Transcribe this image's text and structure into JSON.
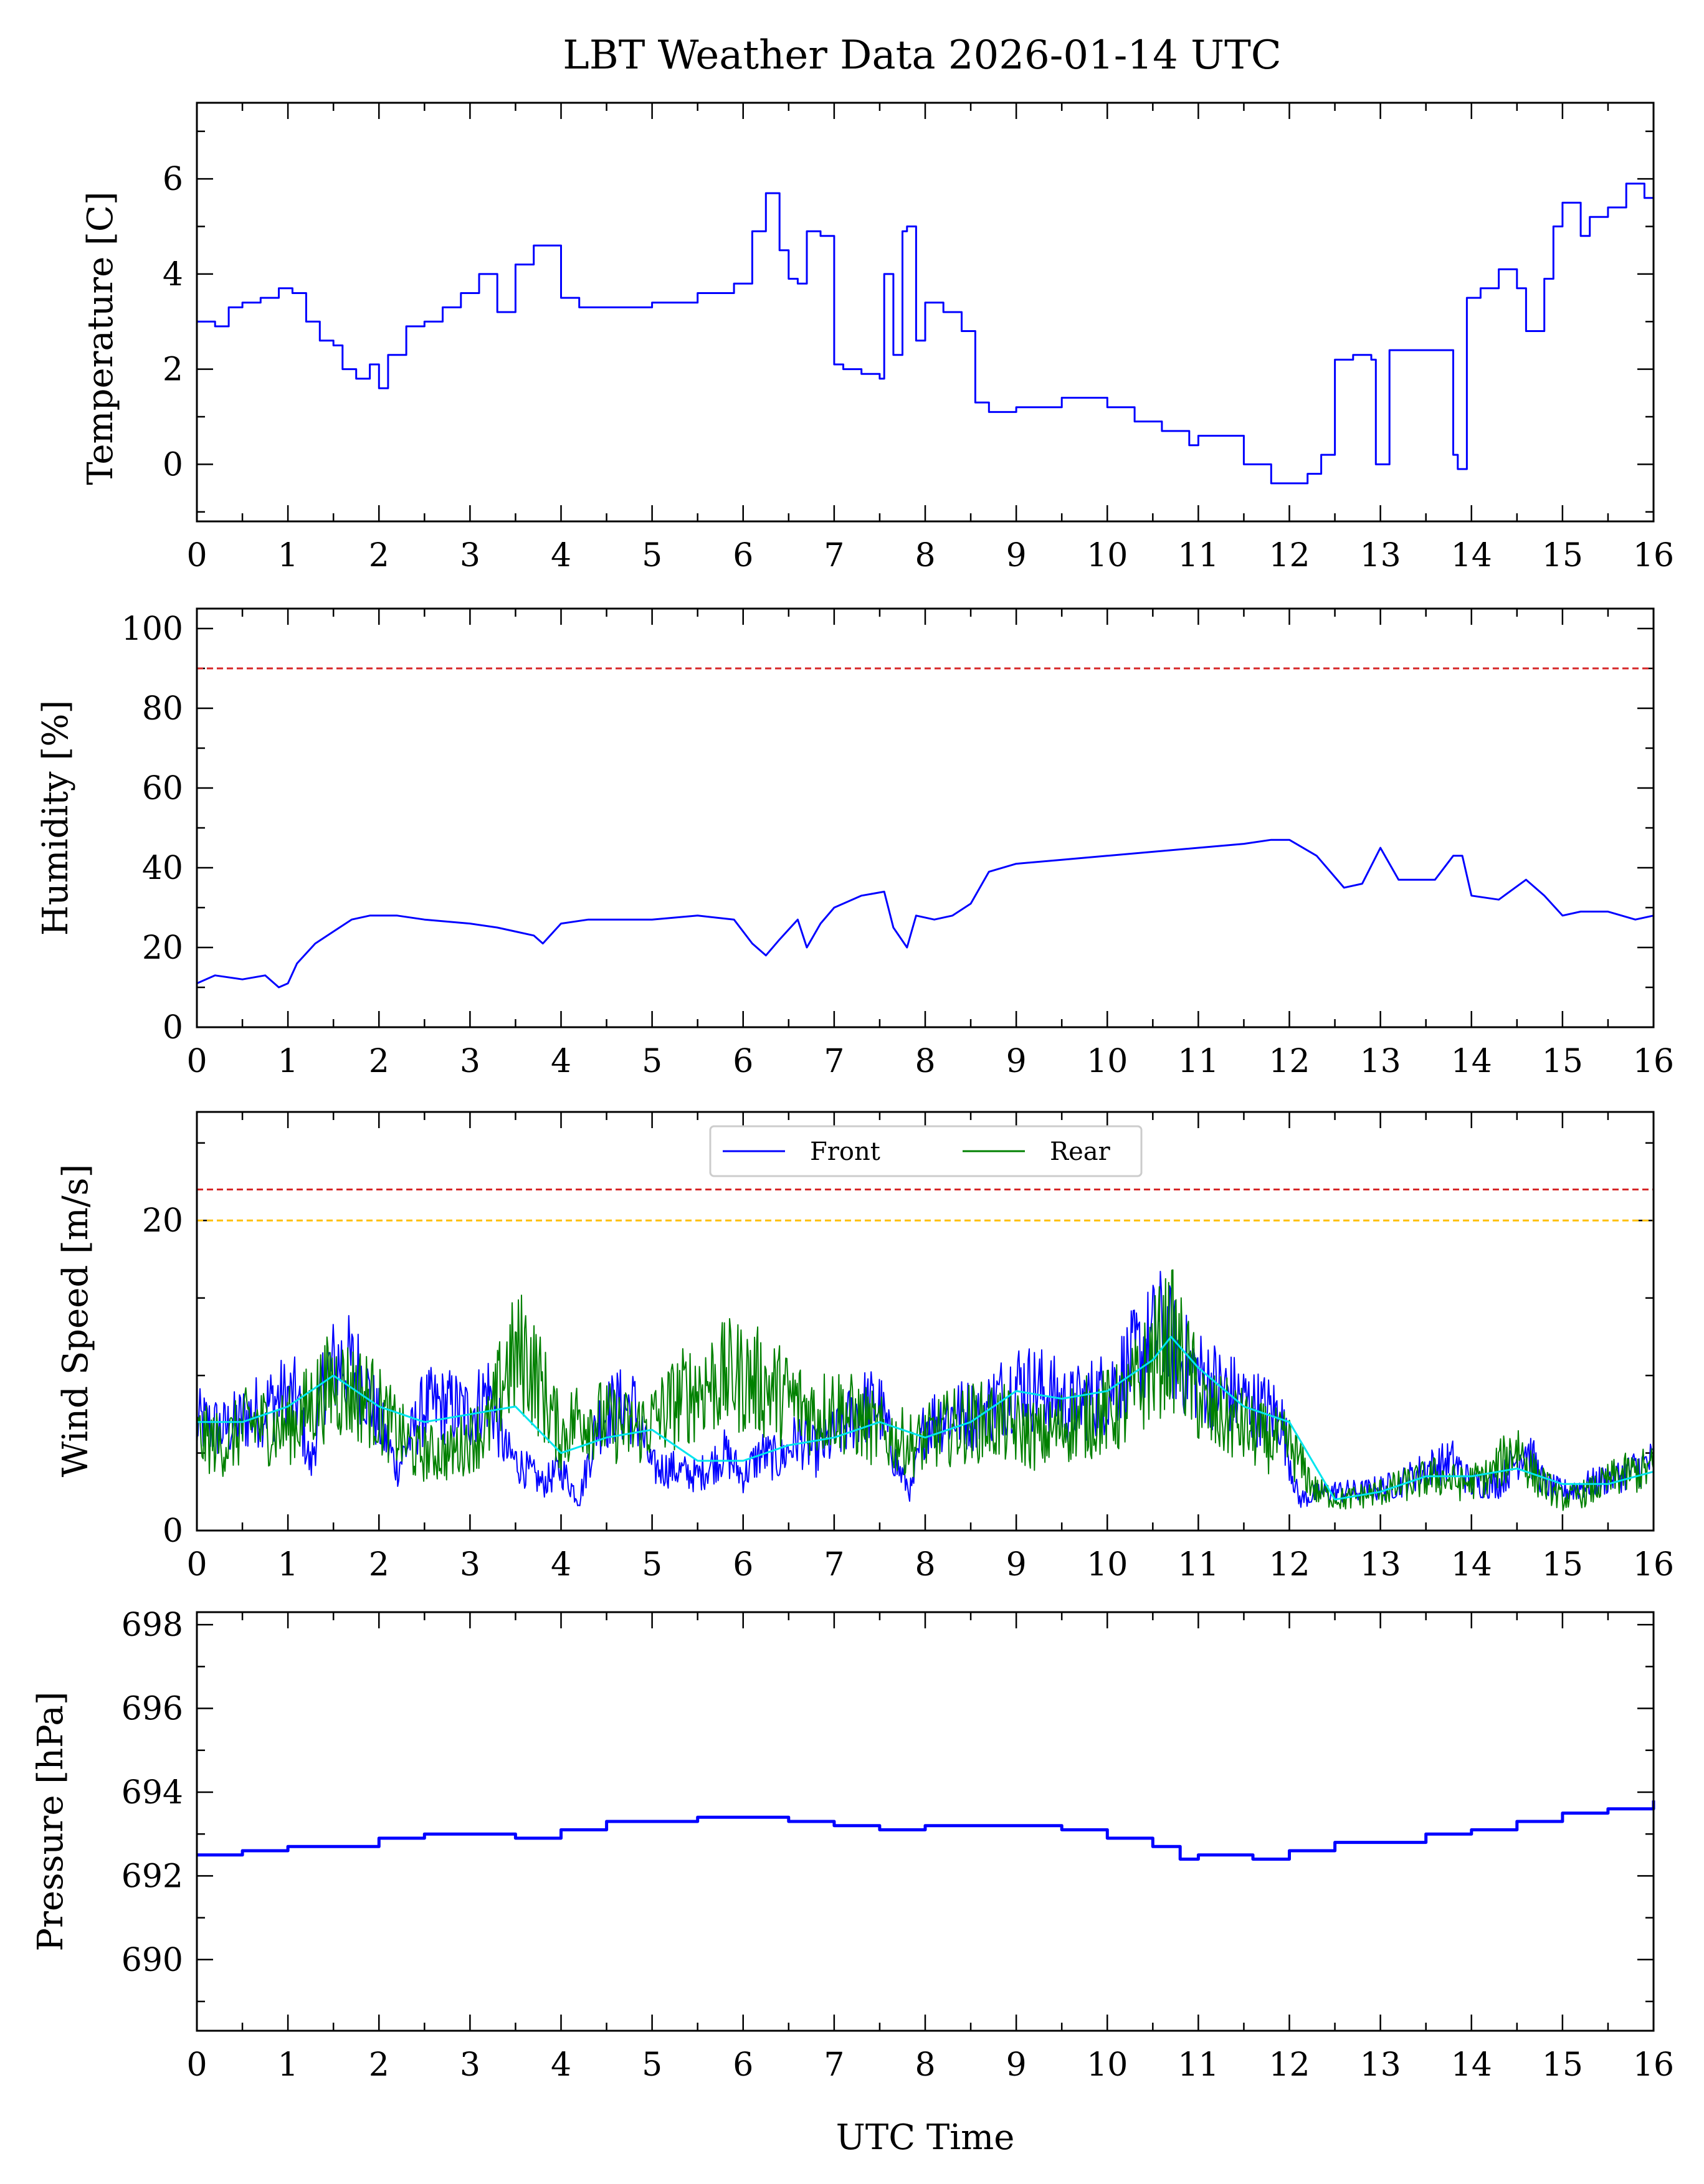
{
  "colors": {
    "front": "#0000ff",
    "rear": "#008000",
    "smooth": "#00e5ee",
    "limit_red": "#d62728",
    "limit_orange": "#ffbf00"
  },
  "chart_data": [
    {
      "type": "line",
      "title": "LBT Weather Data 2026-01-14 UTC",
      "ylabel": "Temperature [C]",
      "xlim": [
        0,
        16
      ],
      "ylim": [
        -1.2,
        7.6
      ],
      "xticks": [
        "0",
        "1",
        "2",
        "3",
        "4",
        "5",
        "6",
        "7",
        "8",
        "9",
        "10",
        "11",
        "12",
        "13",
        "14",
        "15",
        "16"
      ],
      "yticks": [
        0,
        2,
        4,
        6
      ],
      "series": [
        {
          "name": "Temperature",
          "color": "#0000ff",
          "x": [
            0,
            0.2,
            0.35,
            0.5,
            0.7,
            0.9,
            1.05,
            1.2,
            1.35,
            1.5,
            1.6,
            1.75,
            1.9,
            2.0,
            2.1,
            2.3,
            2.5,
            2.7,
            2.9,
            3.1,
            3.3,
            3.5,
            3.7,
            3.85,
            4.0,
            4.2,
            4.5,
            5.0,
            5.5,
            5.9,
            6.0,
            6.1,
            6.25,
            6.4,
            6.5,
            6.6,
            6.7,
            6.85,
            7.0,
            7.1,
            7.3,
            7.5,
            7.55,
            7.65,
            7.75,
            7.8,
            7.9,
            8.0,
            8.2,
            8.4,
            8.55,
            8.7,
            9.0,
            9.5,
            10.0,
            10.3,
            10.6,
            10.9,
            11.0,
            11.2,
            11.5,
            11.8,
            12.0,
            12.2,
            12.35,
            12.5,
            12.7,
            12.9,
            12.95,
            13.1,
            13.3,
            13.6,
            13.8,
            13.85,
            13.95,
            14.1,
            14.3,
            14.5,
            14.6,
            14.8,
            14.9,
            15.0,
            15.2,
            15.3,
            15.5,
            15.7,
            15.8,
            15.9,
            16.0
          ],
          "y": [
            3.0,
            2.9,
            3.3,
            3.4,
            3.5,
            3.7,
            3.6,
            3.0,
            2.6,
            2.5,
            2.0,
            1.8,
            2.1,
            1.6,
            2.3,
            2.9,
            3.0,
            3.3,
            3.6,
            4.0,
            3.2,
            4.2,
            4.6,
            4.6,
            3.5,
            3.3,
            3.3,
            3.4,
            3.6,
            3.8,
            3.8,
            4.9,
            5.7,
            4.5,
            3.9,
            3.8,
            4.9,
            4.8,
            2.1,
            2.0,
            1.9,
            1.8,
            4.0,
            2.3,
            4.9,
            5.0,
            2.6,
            3.4,
            3.2,
            2.8,
            1.3,
            1.1,
            1.2,
            1.4,
            1.2,
            0.9,
            0.7,
            0.4,
            0.6,
            0.6,
            0.0,
            -0.4,
            -0.4,
            -0.2,
            0.2,
            2.2,
            2.3,
            2.2,
            0.0,
            2.4,
            2.4,
            2.4,
            0.2,
            -0.1,
            3.5,
            3.7,
            4.1,
            3.7,
            2.8,
            3.9,
            5.0,
            5.5,
            4.8,
            5.2,
            5.4,
            5.9,
            5.9,
            5.6,
            5.0
          ]
        }
      ]
    },
    {
      "type": "line",
      "ylabel": "Humidity [%]",
      "xlim": [
        0,
        16
      ],
      "ylim": [
        0,
        105
      ],
      "xticks": [
        "0",
        "1",
        "2",
        "3",
        "4",
        "5",
        "6",
        "7",
        "8",
        "9",
        "10",
        "11",
        "12",
        "13",
        "14",
        "15",
        "16"
      ],
      "yticks": [
        0,
        20,
        40,
        60,
        80,
        100
      ],
      "threshold": 90,
      "series": [
        {
          "name": "Humidity",
          "color": "#0000ff",
          "x": [
            0,
            0.2,
            0.5,
            0.75,
            0.9,
            1.0,
            1.1,
            1.3,
            1.5,
            1.7,
            1.9,
            2.2,
            2.5,
            3.0,
            3.3,
            3.5,
            3.7,
            3.8,
            4.0,
            4.3,
            5.0,
            5.5,
            5.9,
            6.1,
            6.25,
            6.4,
            6.6,
            6.7,
            6.85,
            7.0,
            7.3,
            7.55,
            7.65,
            7.8,
            7.9,
            8.1,
            8.3,
            8.5,
            8.7,
            9.0,
            9.5,
            10.0,
            10.5,
            11.0,
            11.5,
            11.8,
            12.0,
            12.3,
            12.6,
            12.8,
            13.0,
            13.2,
            13.4,
            13.6,
            13.8,
            13.9,
            14.0,
            14.3,
            14.6,
            14.8,
            15.0,
            15.2,
            15.5,
            15.8,
            16.0
          ],
          "y": [
            11,
            13,
            12,
            13,
            10,
            11,
            16,
            21,
            24,
            27,
            28,
            28,
            27,
            26,
            25,
            24,
            23,
            21,
            26,
            27,
            27,
            28,
            27,
            21,
            18,
            22,
            27,
            20,
            26,
            30,
            33,
            34,
            25,
            20,
            28,
            27,
            28,
            31,
            39,
            41,
            42,
            43,
            44,
            45,
            46,
            47,
            47,
            43,
            35,
            36,
            45,
            37,
            37,
            37,
            43,
            43,
            33,
            32,
            37,
            33,
            28,
            29,
            29,
            27,
            28
          ]
        }
      ]
    },
    {
      "type": "line",
      "ylabel": "Wind Speed [m/s]",
      "xlim": [
        0,
        16
      ],
      "ylim": [
        0,
        27
      ],
      "xticks": [
        "0",
        "1",
        "2",
        "3",
        "4",
        "5",
        "6",
        "7",
        "8",
        "9",
        "10",
        "11",
        "12",
        "13",
        "14",
        "15",
        "16"
      ],
      "yticks": [
        0,
        20
      ],
      "threshold_red": 22,
      "threshold_orange": 20,
      "legend": {
        "placement": "top-center",
        "entries": [
          "Front",
          "Rear"
        ]
      },
      "series": [
        {
          "name": "Front",
          "color": "#0000ff",
          "x": [
            0,
            0.3,
            0.6,
            0.9,
            1.1,
            1.25,
            1.4,
            1.6,
            1.8,
            2.0,
            2.2,
            2.5,
            2.8,
            3.0,
            3.2,
            3.4,
            3.6,
            3.8,
            4.0,
            4.2,
            4.4,
            4.6,
            4.8,
            5.0,
            5.2,
            5.5,
            5.8,
            6.0,
            6.2,
            6.4,
            6.6,
            6.8,
            7.0,
            7.3,
            7.5,
            7.7,
            7.85,
            8.0,
            8.3,
            8.6,
            9.0,
            9.3,
            9.6,
            10.0,
            10.3,
            10.6,
            10.8,
            11.0,
            11.3,
            11.6,
            11.9,
            12.1,
            12.4,
            12.8,
            13.2,
            13.5,
            13.8,
            14.0,
            14.3,
            14.6,
            14.8,
            15.0,
            15.3,
            15.6,
            16.0
          ],
          "y": [
            7.0,
            6.5,
            7.5,
            8.5,
            8.5,
            4.0,
            10.0,
            11.0,
            10.0,
            7.0,
            4.0,
            8.0,
            8.0,
            7.5,
            9.0,
            5.0,
            4.0,
            3.0,
            4.0,
            2.0,
            7.0,
            8.0,
            8.0,
            4.0,
            4.0,
            3.5,
            5.0,
            3.5,
            5.0,
            4.5,
            6.0,
            5.0,
            6.0,
            8.0,
            8.0,
            4.0,
            2.5,
            7.0,
            7.5,
            7.5,
            9.5,
            9.0,
            8.0,
            9.0,
            11.0,
            13.0,
            11.0,
            10.0,
            9.0,
            8.0,
            7.5,
            2.0,
            2.5,
            2.5,
            3.0,
            4.0,
            4.5,
            3.0,
            3.0,
            5.5,
            3.0,
            2.5,
            3.0,
            3.5,
            4.5
          ]
        },
        {
          "name": "Rear",
          "color": "#008000",
          "x": [
            0,
            0.3,
            0.6,
            0.9,
            1.1,
            1.3,
            1.5,
            1.7,
            1.9,
            2.1,
            2.4,
            2.8,
            3.0,
            3.2,
            3.4,
            3.6,
            3.8,
            4.0,
            4.2,
            4.5,
            4.8,
            5.0,
            5.3,
            5.6,
            5.9,
            6.2,
            6.5,
            6.8,
            7.0,
            7.3,
            7.6,
            7.9,
            8.2,
            8.5,
            8.8,
            9.0,
            9.3,
            9.6,
            9.9,
            10.2,
            10.5,
            10.7,
            10.9,
            11.1,
            11.4,
            11.7,
            12.0,
            12.3,
            12.6,
            13.0,
            13.3,
            13.6,
            13.9,
            14.2,
            14.5,
            14.7,
            15.0,
            15.3,
            15.6,
            16.0
          ],
          "y": [
            6.0,
            5.5,
            7.0,
            6.5,
            7.0,
            8.5,
            9.5,
            9.0,
            8.5,
            7.0,
            5.0,
            5.0,
            6.0,
            6.5,
            10.5,
            11.5,
            9.0,
            6.0,
            7.5,
            7.0,
            6.5,
            7.0,
            8.5,
            9.5,
            10.0,
            9.5,
            8.5,
            7.5,
            8.0,
            7.0,
            6.0,
            5.5,
            6.5,
            7.0,
            7.0,
            6.5,
            6.0,
            7.0,
            7.5,
            8.0,
            11.0,
            12.5,
            10.0,
            7.5,
            7.0,
            6.0,
            5.5,
            2.5,
            2.0,
            2.5,
            3.0,
            3.5,
            3.0,
            3.5,
            5.5,
            3.5,
            2.0,
            2.5,
            3.5,
            4.0
          ]
        },
        {
          "name": "Front-smoothed",
          "color": "#00e5ee",
          "x": [
            0,
            0.5,
            1.0,
            1.5,
            2.0,
            2.5,
            3.0,
            3.5,
            4.0,
            4.5,
            5.0,
            5.5,
            6.0,
            6.5,
            7.0,
            7.5,
            8.0,
            8.5,
            9.0,
            9.5,
            10.0,
            10.5,
            10.7,
            11.0,
            11.5,
            12.0,
            12.5,
            13.0,
            13.5,
            14.0,
            14.5,
            15.0,
            15.5,
            16.0
          ],
          "y": [
            7.0,
            7.0,
            8.0,
            10.0,
            8.0,
            7.0,
            7.5,
            8.0,
            5.0,
            6.0,
            6.5,
            4.5,
            4.5,
            5.5,
            6.0,
            7.0,
            6.0,
            7.0,
            9.0,
            8.5,
            9.0,
            11.0,
            12.5,
            10.5,
            8.0,
            7.0,
            2.0,
            2.5,
            3.5,
            3.5,
            4.0,
            3.0,
            3.0,
            3.8
          ]
        }
      ]
    },
    {
      "type": "line",
      "ylabel": "Pressure [hPa]",
      "xlabel": "UTC Time",
      "xlim": [
        0,
        16
      ],
      "ylim": [
        688.3,
        698.3
      ],
      "xticks": [
        "0",
        "1",
        "2",
        "3",
        "4",
        "5",
        "6",
        "7",
        "8",
        "9",
        "10",
        "11",
        "12",
        "13",
        "14",
        "15",
        "16"
      ],
      "yticks": [
        690,
        692,
        694,
        696,
        698
      ],
      "series": [
        {
          "name": "Pressure",
          "color": "#0000ff",
          "x": [
            0,
            0.5,
            1.0,
            1.5,
            2.0,
            2.5,
            3.0,
            3.5,
            4.0,
            4.5,
            5.0,
            5.5,
            6.0,
            6.5,
            7.0,
            7.5,
            8.0,
            8.5,
            9.0,
            9.5,
            10.0,
            10.5,
            10.8,
            11.0,
            11.3,
            11.6,
            12.0,
            12.5,
            13.0,
            13.5,
            14.0,
            14.5,
            15.0,
            15.5,
            16.0
          ],
          "y": [
            692.5,
            692.6,
            692.7,
            692.7,
            692.9,
            693.0,
            693.0,
            692.9,
            693.1,
            693.3,
            693.3,
            693.4,
            693.4,
            693.3,
            693.2,
            693.1,
            693.2,
            693.2,
            693.2,
            693.1,
            692.9,
            692.7,
            692.4,
            692.5,
            692.5,
            692.4,
            692.6,
            692.8,
            692.8,
            693.0,
            693.1,
            693.3,
            693.5,
            693.6,
            693.8
          ]
        }
      ]
    }
  ]
}
